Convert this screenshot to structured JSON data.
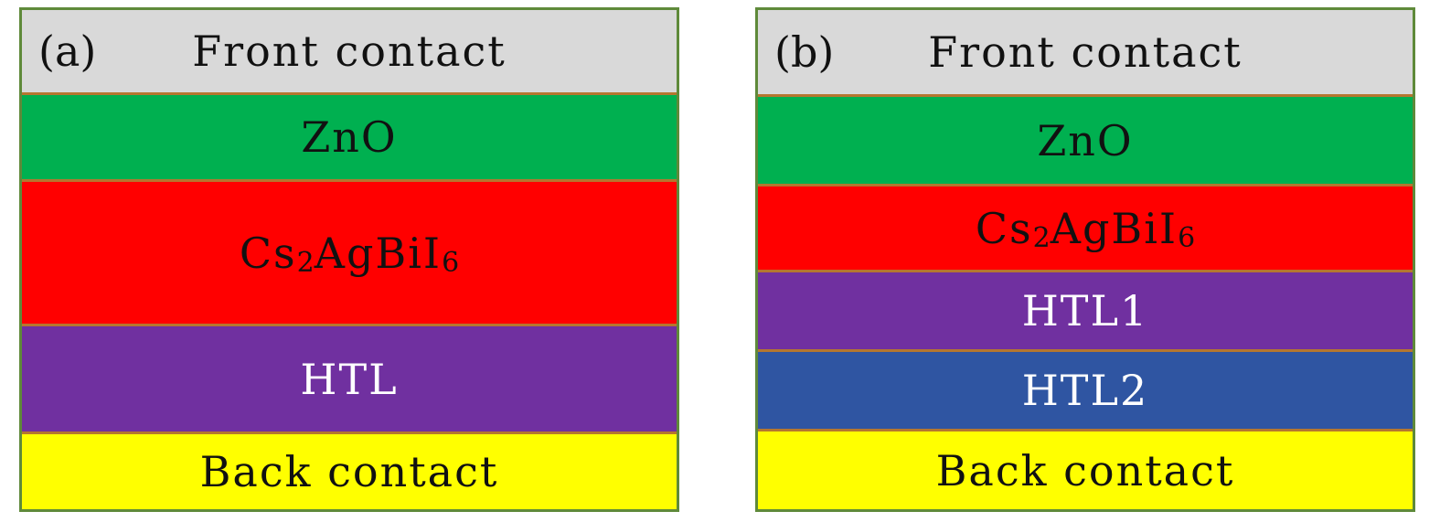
{
  "panels": {
    "a": {
      "label": "(a)",
      "layers": [
        {
          "text": "Front contact",
          "color": "#d9d9d9"
        },
        {
          "text": "ZnO",
          "color": "#00b050"
        },
        {
          "text_main": "Cs",
          "sub1": "2",
          "text_mid": "AgBiI",
          "sub2": "6",
          "color": "#ff0000"
        },
        {
          "text": "HTL",
          "color": "#7030a0"
        },
        {
          "text": "Back contact",
          "color": "#ffff00"
        }
      ]
    },
    "b": {
      "label": "(b)",
      "layers": [
        {
          "text": "Front contact",
          "color": "#d9d9d9"
        },
        {
          "text": "ZnO",
          "color": "#00b050"
        },
        {
          "text_main": "Cs",
          "sub1": "2",
          "text_mid": "AgBiI",
          "sub2": "6",
          "color": "#ff0000"
        },
        {
          "text": "HTL1",
          "color": "#7030a0"
        },
        {
          "text": "HTL2",
          "color": "#2f55a2"
        },
        {
          "text": "Back contact",
          "color": "#ffff00"
        }
      ]
    }
  }
}
